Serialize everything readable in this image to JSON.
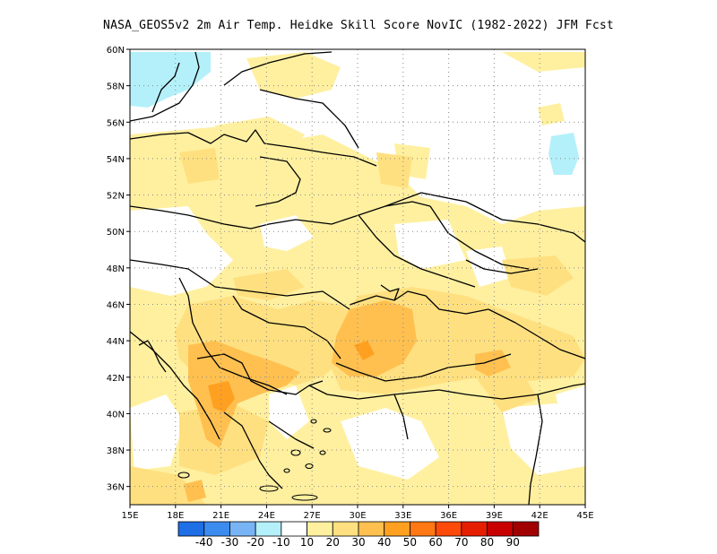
{
  "title": "NASA_GEOS5v2  2m Air Temp. Heidke Skill Score NovIC (1982-2022) JFM Fcst",
  "map": {
    "lon_range": [
      15,
      45
    ],
    "lat_range": [
      35,
      60
    ],
    "x_ticks": [
      "15E",
      "18E",
      "21E",
      "24E",
      "27E",
      "30E",
      "33E",
      "36E",
      "39E",
      "42E",
      "45E"
    ],
    "y_ticks": [
      "36N",
      "38N",
      "40N",
      "42N",
      "44N",
      "46N",
      "48N",
      "50N",
      "52N",
      "54N",
      "56N",
      "58N",
      "60N"
    ],
    "grid": "dotted"
  },
  "colorbar": {
    "colors": [
      "#1e6ee6",
      "#3c8cf0",
      "#78b4f5",
      "#b4f0fa",
      "#ffffff",
      "#fff0a0",
      "#ffe080",
      "#ffc050",
      "#ffa020",
      "#ff7814",
      "#ff4a0a",
      "#e61e00",
      "#c80000",
      "#a00000"
    ],
    "labels": [
      "-40",
      "-30",
      "-20",
      "-10",
      "10",
      "20",
      "30",
      "40",
      "50",
      "60",
      "70",
      "80",
      "90"
    ]
  }
}
